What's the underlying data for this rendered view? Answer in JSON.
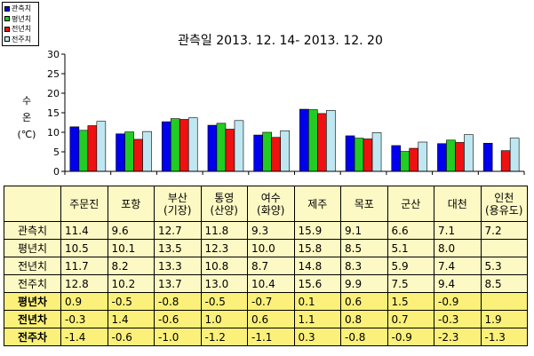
{
  "colors": {
    "관측치": "#0000ee",
    "평년치": "#22cc22",
    "전년치": "#ee1111",
    "전주치": "#bfe7f1",
    "table_bg": "#fdf9c4",
    "table_hi_bg": "#fbf07a"
  },
  "chart_data": {
    "type": "bar",
    "title": "관측일 2013. 12. 14-  2013. 12. 20",
    "ylabel_lines": [
      "수",
      "온",
      "(℃)"
    ],
    "ylim": [
      0,
      30
    ],
    "yticks": [
      0,
      5,
      10,
      15,
      20,
      25,
      30
    ],
    "grid": false,
    "legend_position": "top-left",
    "categories": [
      "주문진",
      "포항",
      "부산\n(기장)",
      "통영\n(산양)",
      "여수\n(화양)",
      "제주",
      "목포",
      "군산",
      "대천",
      "인천\n(용유도)"
    ],
    "series": [
      {
        "name": "관측치",
        "values": [
          11.4,
          9.6,
          12.7,
          11.8,
          9.3,
          15.9,
          9.1,
          6.6,
          7.1,
          7.2
        ]
      },
      {
        "name": "평년치",
        "values": [
          10.5,
          10.1,
          13.5,
          12.3,
          10.0,
          15.8,
          8.5,
          5.1,
          8.0,
          null
        ]
      },
      {
        "name": "전년치",
        "values": [
          11.7,
          8.2,
          13.3,
          10.8,
          8.7,
          14.8,
          8.3,
          5.9,
          7.4,
          5.3
        ]
      },
      {
        "name": "전주치",
        "values": [
          12.8,
          10.2,
          13.7,
          13.0,
          10.4,
          15.6,
          9.9,
          7.5,
          9.4,
          8.5
        ]
      }
    ]
  },
  "table": {
    "rows": [
      {
        "label": "관측치",
        "highlight": false,
        "cells": [
          "11.4",
          "9.6",
          "12.7",
          "11.8",
          "9.3",
          "15.9",
          "9.1",
          "6.6",
          "7.1",
          "7.2"
        ]
      },
      {
        "label": "평년치",
        "highlight": false,
        "cells": [
          "10.5",
          "10.1",
          "13.5",
          "12.3",
          "10.0",
          "15.8",
          "8.5",
          "5.1",
          "8.0",
          ""
        ]
      },
      {
        "label": "전년치",
        "highlight": false,
        "cells": [
          "11.7",
          "8.2",
          "13.3",
          "10.8",
          "8.7",
          "14.8",
          "8.3",
          "5.9",
          "7.4",
          "5.3"
        ]
      },
      {
        "label": "전주치",
        "highlight": false,
        "cells": [
          "12.8",
          "10.2",
          "13.7",
          "13.0",
          "10.4",
          "15.6",
          "9.9",
          "7.5",
          "9.4",
          "8.5"
        ]
      },
      {
        "label": "평년차",
        "highlight": true,
        "cells": [
          "0.9",
          "-0.5",
          "-0.8",
          "-0.5",
          "-0.7",
          "0.1",
          "0.6",
          "1.5",
          "-0.9",
          ""
        ]
      },
      {
        "label": "전년차",
        "highlight": true,
        "cells": [
          "-0.3",
          "1.4",
          "-0.6",
          "1.0",
          "0.6",
          "1.1",
          "0.8",
          "0.7",
          "-0.3",
          "1.9"
        ]
      },
      {
        "label": "전주차",
        "highlight": true,
        "cells": [
          "-1.4",
          "-0.6",
          "-1.0",
          "-1.2",
          "-1.1",
          "0.3",
          "-0.8",
          "-0.9",
          "-2.3",
          "-1.3"
        ]
      }
    ]
  }
}
